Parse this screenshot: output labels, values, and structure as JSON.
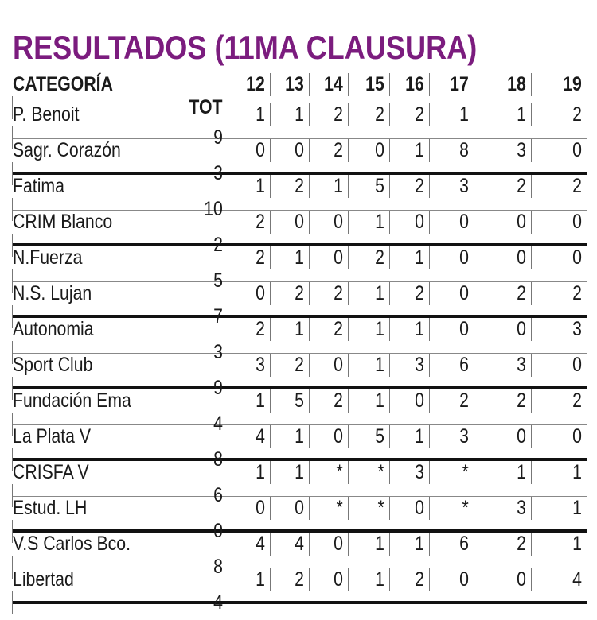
{
  "title": "RESULTADOS (11MA CLAUSURA)",
  "columns": [
    "CATEGORÍA",
    "12",
    "13",
    "14",
    "15",
    "16",
    "17",
    "18",
    "19",
    "TOT"
  ],
  "rows": [
    {
      "team": "P. Benoit",
      "values": [
        "1",
        "1",
        "2",
        "2",
        "2",
        "1",
        "1",
        "2",
        "9"
      ]
    },
    {
      "team": "Sagr. Corazón",
      "values": [
        "0",
        "0",
        "2",
        "0",
        "1",
        "8",
        "3",
        "0",
        "3"
      ]
    },
    {
      "team": "Fatima",
      "values": [
        "1",
        "2",
        "1",
        "5",
        "2",
        "3",
        "2",
        "2",
        "10"
      ]
    },
    {
      "team": "CRIM Blanco",
      "values": [
        "2",
        "0",
        "0",
        "1",
        "0",
        "0",
        "0",
        "0",
        "2"
      ]
    },
    {
      "team": "N.Fuerza",
      "values": [
        "2",
        "1",
        "0",
        "2",
        "1",
        "0",
        "0",
        "0",
        "5"
      ]
    },
    {
      "team": "N.S. Lujan",
      "values": [
        "0",
        "2",
        "2",
        "1",
        "2",
        "0",
        "2",
        "2",
        "7"
      ]
    },
    {
      "team": "Autonomia",
      "values": [
        "2",
        "1",
        "2",
        "1",
        "1",
        "0",
        "0",
        "3",
        "3"
      ]
    },
    {
      "team": "Sport Club",
      "values": [
        "3",
        "2",
        "0",
        "1",
        "3",
        "6",
        "3",
        "0",
        "9"
      ]
    },
    {
      "team": "Fundación Ema",
      "values": [
        "1",
        "5",
        "2",
        "1",
        "0",
        "2",
        "2",
        "2",
        "4"
      ]
    },
    {
      "team": "La Plata V",
      "values": [
        "4",
        "1",
        "0",
        "5",
        "1",
        "3",
        "0",
        "0",
        "8"
      ]
    },
    {
      "team": "CRISFA V",
      "values": [
        "1",
        "1",
        "*",
        "*",
        "3",
        "*",
        "1",
        "1",
        "6"
      ]
    },
    {
      "team": "Estud. LH",
      "values": [
        "0",
        "0",
        "*",
        "*",
        "0",
        "*",
        "3",
        "1",
        "0"
      ]
    },
    {
      "team": "V.S Carlos Bco.",
      "values": [
        "4",
        "4",
        "0",
        "1",
        "1",
        "6",
        "2",
        "1",
        "8"
      ]
    },
    {
      "team": "Libertad",
      "values": [
        "1",
        "2",
        "0",
        "1",
        "2",
        "0",
        "0",
        "4",
        "4"
      ]
    }
  ],
  "colors": {
    "title": "#7b1c7e",
    "text": "#1a1a1a"
  }
}
